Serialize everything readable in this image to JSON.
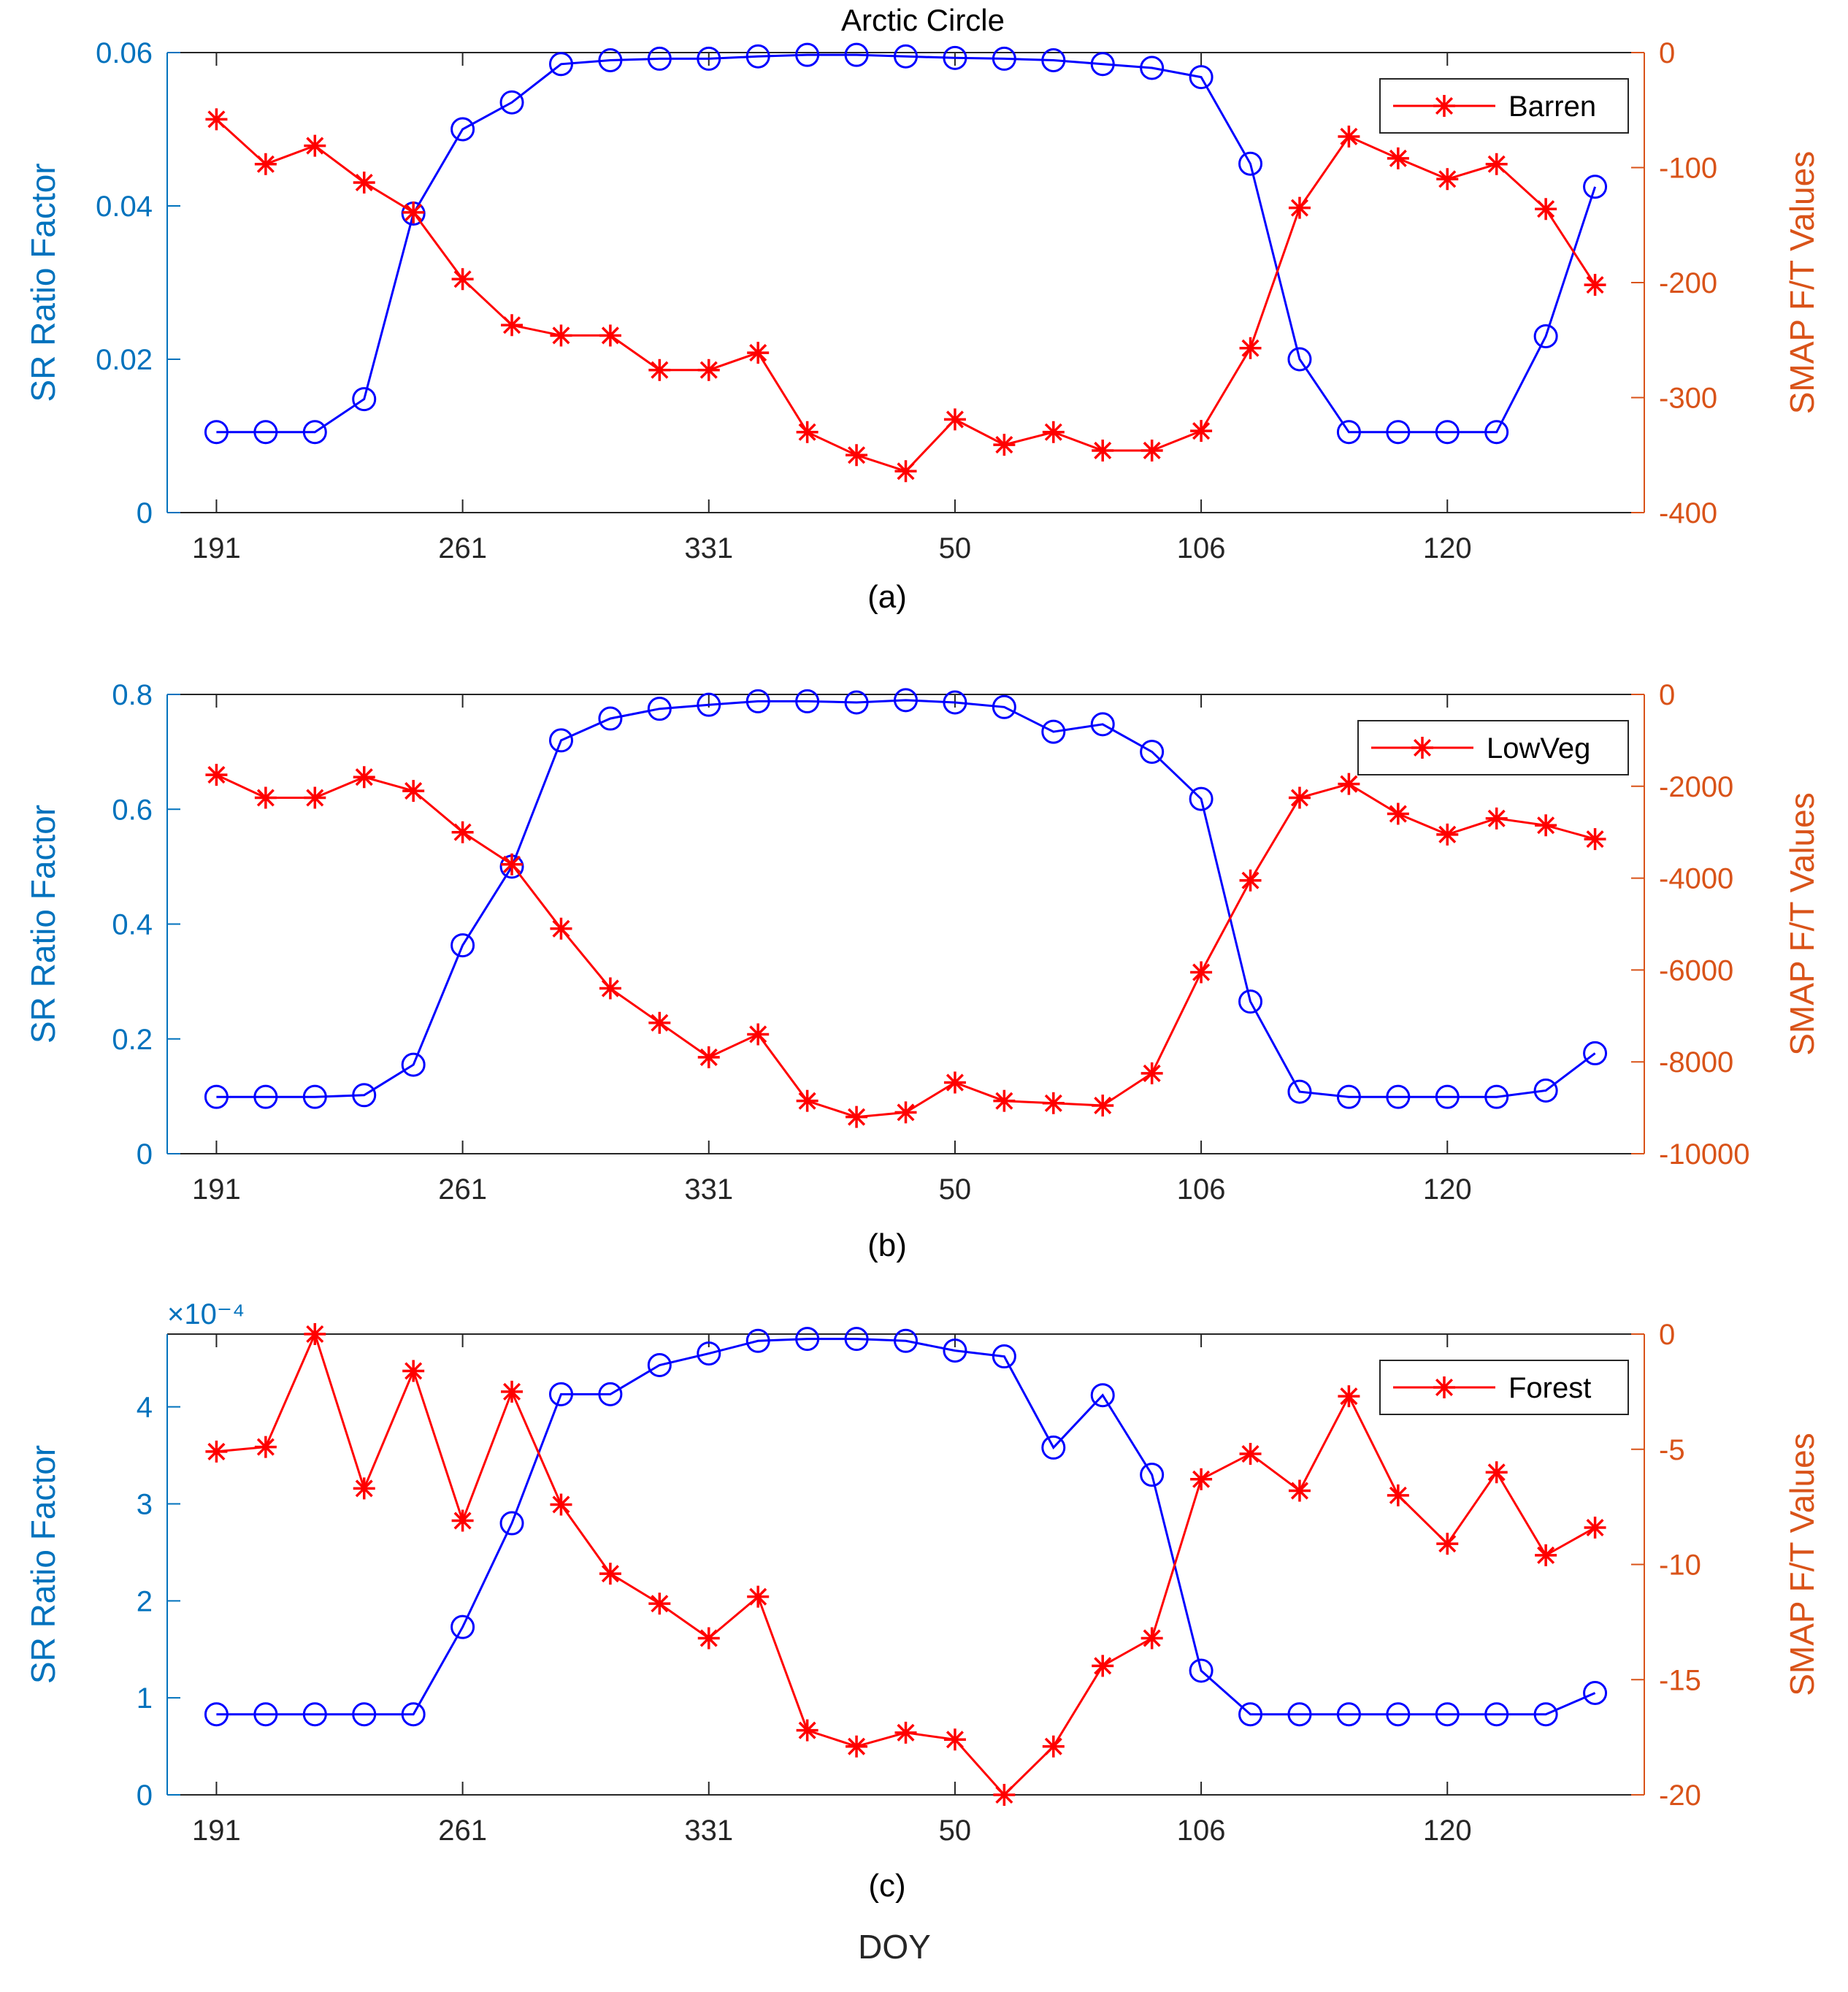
{
  "figure": {
    "title": "Arctic Circle",
    "xlabel": "DOY",
    "left_color": "#0072bd",
    "right_color": "#d95319",
    "sr_series_color": "#0000ff",
    "smap_series_color": "#ff0000"
  },
  "chart_data": [
    {
      "type": "line",
      "id": "a",
      "panel_label": "(a)",
      "title": "Arctic Circle",
      "xlabel": "",
      "ylabel_left": "SR Ratio Factor",
      "ylabel_right": "SMAP F/T Values",
      "x_ticks": [
        "191",
        "261",
        "331",
        "50",
        "106",
        "120"
      ],
      "x_tick_positions": [
        1,
        6,
        11,
        16,
        21,
        26
      ],
      "xlim": [
        0,
        30
      ],
      "ylim_left": [
        0,
        0.06
      ],
      "yticks_left": [
        "0",
        "0.02",
        "0.04",
        "0.06"
      ],
      "yticks_left_values": [
        0,
        0.02,
        0.04,
        0.06
      ],
      "ylim_right": [
        -400,
        0
      ],
      "yticks_right": [
        "-400",
        "-300",
        "-200",
        "-100",
        "0"
      ],
      "yticks_right_values": [
        -400,
        -300,
        -200,
        -100,
        0
      ],
      "exponent_label": "",
      "legend": "Barren",
      "legend_position": "top-right",
      "x": [
        1,
        2,
        3,
        4,
        5,
        6,
        7,
        8,
        9,
        10,
        11,
        12,
        13,
        14,
        15,
        16,
        17,
        18,
        19,
        20,
        21,
        22,
        23,
        24,
        25,
        26,
        27,
        28,
        29
      ],
      "series": [
        {
          "name": "SR Ratio Factor",
          "axis": "left",
          "marker": "circle",
          "values": [
            0.0105,
            0.0105,
            0.0105,
            0.0148,
            0.039,
            0.05,
            0.0535,
            0.0585,
            0.059,
            0.0592,
            0.0592,
            0.0595,
            0.0597,
            0.0597,
            0.0595,
            0.0593,
            0.0592,
            0.059,
            0.0585,
            0.058,
            0.0568,
            0.0455,
            0.02,
            0.0105,
            0.0105,
            0.0105,
            0.0105,
            0.023,
            0.0425
          ]
        },
        {
          "name": "Barren",
          "axis": "right",
          "marker": "star",
          "values": [
            -58,
            -97,
            -81,
            -113,
            -139,
            -197,
            -237,
            -246,
            -246,
            -276,
            -276,
            -261,
            -330,
            -350,
            -364,
            -319,
            -341,
            -330,
            -346,
            -346,
            -329,
            -257,
            -135,
            -73,
            -92,
            -110,
            -97,
            -136,
            -202
          ]
        }
      ]
    },
    {
      "type": "line",
      "id": "b",
      "panel_label": "(b)",
      "title": "",
      "xlabel": "",
      "ylabel_left": "SR Ratio Factor",
      "ylabel_right": "SMAP F/T Values",
      "x_ticks": [
        "191",
        "261",
        "331",
        "50",
        "106",
        "120"
      ],
      "x_tick_positions": [
        1,
        6,
        11,
        16,
        21,
        26
      ],
      "xlim": [
        0,
        30
      ],
      "ylim_left": [
        0,
        0.8
      ],
      "yticks_left": [
        "0",
        "0.2",
        "0.4",
        "0.6",
        "0.8"
      ],
      "yticks_left_values": [
        0,
        0.2,
        0.4,
        0.6,
        0.8
      ],
      "ylim_right": [
        -10000,
        0
      ],
      "yticks_right": [
        "-10000",
        "-8000",
        "-6000",
        "-4000",
        "-2000",
        "0"
      ],
      "yticks_right_values": [
        -10000,
        -8000,
        -6000,
        -4000,
        -2000,
        0
      ],
      "exponent_label": "",
      "legend": "LowVeg",
      "legend_position": "top-right",
      "x": [
        1,
        2,
        3,
        4,
        5,
        6,
        7,
        8,
        9,
        10,
        11,
        12,
        13,
        14,
        15,
        16,
        17,
        18,
        19,
        20,
        21,
        22,
        23,
        24,
        25,
        26,
        27,
        28,
        29
      ],
      "series": [
        {
          "name": "SR Ratio Factor",
          "axis": "left",
          "marker": "circle",
          "values": [
            0.099,
            0.099,
            0.099,
            0.102,
            0.155,
            0.363,
            0.5,
            0.72,
            0.758,
            0.775,
            0.782,
            0.788,
            0.788,
            0.786,
            0.79,
            0.786,
            0.778,
            0.735,
            0.748,
            0.7,
            0.618,
            0.265,
            0.108,
            0.099,
            0.099,
            0.099,
            0.099,
            0.11,
            0.175
          ]
        },
        {
          "name": "LowVeg",
          "axis": "right",
          "marker": "star",
          "values": [
            -1750,
            -2250,
            -2250,
            -1800,
            -2100,
            -3000,
            -3700,
            -5100,
            -6400,
            -7150,
            -7900,
            -7400,
            -8850,
            -9200,
            -9100,
            -8450,
            -8850,
            -8900,
            -8950,
            -8250,
            -6050,
            -4050,
            -2250,
            -1950,
            -2600,
            -3050,
            -2700,
            -2850,
            -3150
          ]
        }
      ]
    },
    {
      "type": "line",
      "id": "c",
      "panel_label": "(c)",
      "title": "",
      "xlabel": "DOY",
      "ylabel_left": "SR Ratio Factor",
      "ylabel_right": "SMAP F/T Values",
      "x_ticks": [
        "191",
        "261",
        "331",
        "50",
        "106",
        "120"
      ],
      "x_tick_positions": [
        1,
        6,
        11,
        16,
        21,
        26
      ],
      "xlim": [
        0,
        30
      ],
      "ylim_left": [
        0,
        4.75
      ],
      "yticks_left": [
        "0",
        "1",
        "2",
        "3",
        "4"
      ],
      "yticks_left_values": [
        0,
        1,
        2,
        3,
        4
      ],
      "ylim_right": [
        -20,
        0
      ],
      "yticks_right": [
        "-20",
        "-15",
        "-10",
        "-5",
        "0"
      ],
      "yticks_right_values": [
        -20,
        -15,
        -10,
        -5,
        0
      ],
      "exponent_label": "×10⁻⁴",
      "legend": "Forest",
      "legend_position": "top-right",
      "x": [
        1,
        2,
        3,
        4,
        5,
        6,
        7,
        8,
        9,
        10,
        11,
        12,
        13,
        14,
        15,
        16,
        17,
        18,
        19,
        20,
        21,
        22,
        23,
        24,
        25,
        26,
        27,
        28,
        29
      ],
      "series": [
        {
          "name": "SR Ratio Factor",
          "axis": "left",
          "marker": "circle",
          "values": [
            0.83,
            0.83,
            0.83,
            0.83,
            0.83,
            1.73,
            2.8,
            4.13,
            4.13,
            4.43,
            4.55,
            4.68,
            4.7,
            4.7,
            4.68,
            4.58,
            4.52,
            3.58,
            4.12,
            3.3,
            1.28,
            0.83,
            0.83,
            0.83,
            0.83,
            0.83,
            0.83,
            0.83,
            1.05
          ]
        },
        {
          "name": "Forest",
          "axis": "right",
          "marker": "star",
          "values": [
            -5.1,
            -4.9,
            0,
            -6.7,
            -1.6,
            -8.1,
            -2.5,
            -7.4,
            -10.4,
            -11.7,
            -13.2,
            -11.4,
            -17.2,
            -17.9,
            -17.3,
            -17.6,
            -20.0,
            -17.9,
            -14.4,
            -13.2,
            -6.3,
            -5.2,
            -6.8,
            -2.7,
            -7.0,
            -9.1,
            -6.0,
            -9.6,
            -8.4
          ]
        }
      ]
    }
  ]
}
